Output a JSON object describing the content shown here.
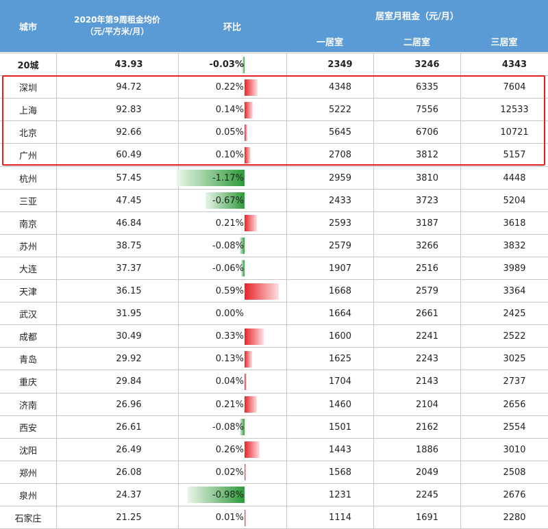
{
  "header": {
    "city": "城市",
    "avg_rent_line1": "2020年第9周租金均价",
    "avg_rent_line2": "（元/平方米/月）",
    "mom": "环比",
    "monthly_group": "居室月租金（元/月）",
    "one_room": "一居室",
    "two_room": "二居室",
    "three_room": "三居室"
  },
  "colors": {
    "header_bg": "#5b9bd5",
    "positive": "#e8232a",
    "negative": "#2e9a3a",
    "highlight_border": "#e02020"
  },
  "chart_data": {
    "type": "table",
    "columns": [
      "城市",
      "2020年第9周租金均价（元/平方米/月）",
      "环比",
      "一居室",
      "二居室",
      "三居室"
    ],
    "rows": [
      {
        "city": "20城",
        "avg": "43.93",
        "mom": "-0.03%",
        "mom_value": -0.03,
        "r1": "2349",
        "r2": "3246",
        "r3": "4343"
      },
      {
        "city": "深圳",
        "avg": "94.72",
        "mom": "0.22%",
        "mom_value": 0.22,
        "r1": "4348",
        "r2": "6335",
        "r3": "7604"
      },
      {
        "city": "上海",
        "avg": "92.83",
        "mom": "0.14%",
        "mom_value": 0.14,
        "r1": "5222",
        "r2": "7556",
        "r3": "12533"
      },
      {
        "city": "北京",
        "avg": "92.66",
        "mom": "0.05%",
        "mom_value": 0.05,
        "r1": "5645",
        "r2": "6706",
        "r3": "10721"
      },
      {
        "city": "广州",
        "avg": "60.49",
        "mom": "0.10%",
        "mom_value": 0.1,
        "r1": "2708",
        "r2": "3812",
        "r3": "5157"
      },
      {
        "city": "杭州",
        "avg": "57.45",
        "mom": "-1.17%",
        "mom_value": -1.17,
        "r1": "2959",
        "r2": "3810",
        "r3": "4448"
      },
      {
        "city": "三亚",
        "avg": "47.45",
        "mom": "-0.67%",
        "mom_value": -0.67,
        "r1": "2433",
        "r2": "3723",
        "r3": "5204"
      },
      {
        "city": "南京",
        "avg": "46.84",
        "mom": "0.21%",
        "mom_value": 0.21,
        "r1": "2593",
        "r2": "3187",
        "r3": "3618"
      },
      {
        "city": "苏州",
        "avg": "38.75",
        "mom": "-0.08%",
        "mom_value": -0.08,
        "r1": "2579",
        "r2": "3266",
        "r3": "3832"
      },
      {
        "city": "大连",
        "avg": "37.37",
        "mom": "-0.06%",
        "mom_value": -0.06,
        "r1": "1907",
        "r2": "2516",
        "r3": "3989"
      },
      {
        "city": "天津",
        "avg": "36.15",
        "mom": "0.59%",
        "mom_value": 0.59,
        "r1": "1668",
        "r2": "2579",
        "r3": "3364"
      },
      {
        "city": "武汉",
        "avg": "31.95",
        "mom": "0.00%",
        "mom_value": 0.0,
        "r1": "1664",
        "r2": "2661",
        "r3": "2425"
      },
      {
        "city": "成都",
        "avg": "30.49",
        "mom": "0.33%",
        "mom_value": 0.33,
        "r1": "1600",
        "r2": "2241",
        "r3": "2522"
      },
      {
        "city": "青岛",
        "avg": "29.92",
        "mom": "0.13%",
        "mom_value": 0.13,
        "r1": "1625",
        "r2": "2243",
        "r3": "3025"
      },
      {
        "city": "重庆",
        "avg": "29.84",
        "mom": "0.04%",
        "mom_value": 0.04,
        "r1": "1704",
        "r2": "2143",
        "r3": "2737"
      },
      {
        "city": "济南",
        "avg": "26.96",
        "mom": "0.21%",
        "mom_value": 0.21,
        "r1": "1460",
        "r2": "2104",
        "r3": "2656"
      },
      {
        "city": "西安",
        "avg": "26.61",
        "mom": "-0.08%",
        "mom_value": -0.08,
        "r1": "1501",
        "r2": "2162",
        "r3": "2554"
      },
      {
        "city": "沈阳",
        "avg": "26.49",
        "mom": "0.26%",
        "mom_value": 0.26,
        "r1": "1443",
        "r2": "1886",
        "r3": "3010"
      },
      {
        "city": "郑州",
        "avg": "26.08",
        "mom": "0.02%",
        "mom_value": 0.02,
        "r1": "1568",
        "r2": "2049",
        "r3": "2508"
      },
      {
        "city": "泉州",
        "avg": "24.37",
        "mom": "-0.98%",
        "mom_value": -0.98,
        "r1": "1231",
        "r2": "2245",
        "r3": "2676"
      },
      {
        "city": "石家庄",
        "avg": "21.25",
        "mom": "0.01%",
        "mom_value": 0.01,
        "r1": "1114",
        "r2": "1691",
        "r3": "2280"
      }
    ]
  }
}
